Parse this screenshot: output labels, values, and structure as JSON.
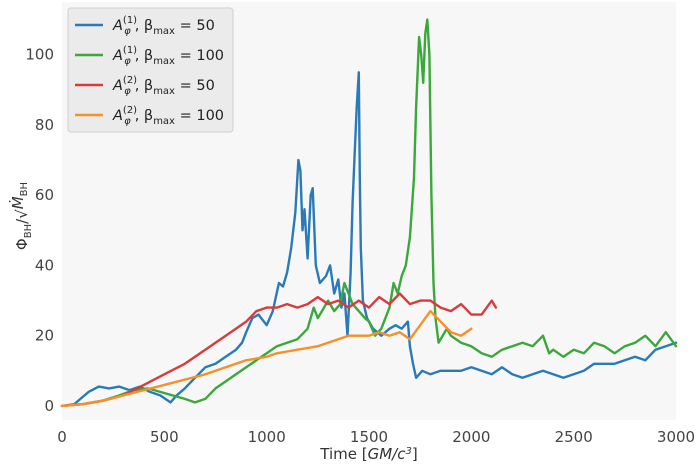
{
  "chart_data": {
    "type": "line",
    "title": "",
    "xlabel": "Time [GM/c³]",
    "ylabel": "Φ_BH / √Ṁ_BH",
    "xlim": [
      0,
      3000
    ],
    "ylim": [
      -4,
      115
    ],
    "xticks": [
      0,
      500,
      1000,
      1500,
      2000,
      2500,
      3000
    ],
    "yticks": [
      0,
      20,
      40,
      60,
      80,
      100
    ],
    "grid": false,
    "legend_position": "top-left",
    "series": [
      {
        "name": "A_φ^(1), β_max = 50",
        "legend": {
          "base": "A",
          "sub": "φ",
          "sup": "(1)",
          "rest": ", β",
          "rest_sub": "max",
          "eq": " = 50"
        },
        "color": "#2a7ab8",
        "points": [
          [
            0,
            0
          ],
          [
            60,
            0.5
          ],
          [
            90,
            2
          ],
          [
            130,
            4
          ],
          [
            180,
            5.5
          ],
          [
            230,
            5
          ],
          [
            280,
            5.5
          ],
          [
            330,
            4.5
          ],
          [
            380,
            5.5
          ],
          [
            430,
            4
          ],
          [
            480,
            3
          ],
          [
            530,
            1
          ],
          [
            560,
            3
          ],
          [
            600,
            5
          ],
          [
            650,
            8
          ],
          [
            700,
            11
          ],
          [
            750,
            12
          ],
          [
            800,
            14
          ],
          [
            850,
            16
          ],
          [
            880,
            18
          ],
          [
            900,
            21
          ],
          [
            930,
            25
          ],
          [
            960,
            26
          ],
          [
            1000,
            23
          ],
          [
            1030,
            27
          ],
          [
            1060,
            35
          ],
          [
            1080,
            34
          ],
          [
            1100,
            38
          ],
          [
            1120,
            45
          ],
          [
            1140,
            55
          ],
          [
            1155,
            70
          ],
          [
            1165,
            67
          ],
          [
            1175,
            50
          ],
          [
            1185,
            56
          ],
          [
            1200,
            42
          ],
          [
            1215,
            60
          ],
          [
            1225,
            62
          ],
          [
            1240,
            40
          ],
          [
            1260,
            35
          ],
          [
            1290,
            37
          ],
          [
            1310,
            40
          ],
          [
            1330,
            32
          ],
          [
            1350,
            36
          ],
          [
            1365,
            28
          ],
          [
            1380,
            32
          ],
          [
            1395,
            20
          ],
          [
            1410,
            38
          ],
          [
            1420,
            58
          ],
          [
            1430,
            72
          ],
          [
            1440,
            85
          ],
          [
            1450,
            95
          ],
          [
            1455,
            65
          ],
          [
            1460,
            45
          ],
          [
            1470,
            30
          ],
          [
            1490,
            25
          ],
          [
            1520,
            22
          ],
          [
            1560,
            20
          ],
          [
            1600,
            22
          ],
          [
            1630,
            23
          ],
          [
            1660,
            22
          ],
          [
            1690,
            24
          ],
          [
            1700,
            17
          ],
          [
            1715,
            12
          ],
          [
            1730,
            8
          ],
          [
            1760,
            10
          ],
          [
            1800,
            9
          ],
          [
            1850,
            10
          ],
          [
            1900,
            10
          ],
          [
            1950,
            10
          ],
          [
            2000,
            11
          ],
          [
            2050,
            10
          ],
          [
            2100,
            9
          ],
          [
            2150,
            11
          ],
          [
            2200,
            9
          ],
          [
            2250,
            8
          ],
          [
            2300,
            9
          ],
          [
            2350,
            10
          ],
          [
            2400,
            9
          ],
          [
            2450,
            8
          ],
          [
            2500,
            9
          ],
          [
            2550,
            10
          ],
          [
            2600,
            12
          ],
          [
            2650,
            12
          ],
          [
            2700,
            12
          ],
          [
            2750,
            13
          ],
          [
            2800,
            14
          ],
          [
            2850,
            13
          ],
          [
            2900,
            16
          ],
          [
            2950,
            17
          ],
          [
            3000,
            18
          ]
        ]
      },
      {
        "name": "A_φ^(1), β_max = 100",
        "legend": {
          "base": "A",
          "sub": "φ",
          "sup": "(1)",
          "rest": ", β",
          "rest_sub": "max",
          "eq": " = 100"
        },
        "color": "#3aa83a",
        "points": [
          [
            0,
            0
          ],
          [
            100,
            0.5
          ],
          [
            200,
            1.5
          ],
          [
            280,
            3
          ],
          [
            350,
            4.5
          ],
          [
            420,
            5
          ],
          [
            480,
            4
          ],
          [
            540,
            3
          ],
          [
            600,
            2
          ],
          [
            650,
            1
          ],
          [
            700,
            2
          ],
          [
            750,
            5
          ],
          [
            800,
            7
          ],
          [
            850,
            9
          ],
          [
            900,
            11
          ],
          [
            950,
            13
          ],
          [
            1000,
            15
          ],
          [
            1050,
            17
          ],
          [
            1100,
            18
          ],
          [
            1150,
            19
          ],
          [
            1200,
            22
          ],
          [
            1230,
            28
          ],
          [
            1250,
            25
          ],
          [
            1280,
            28
          ],
          [
            1300,
            30
          ],
          [
            1330,
            27
          ],
          [
            1360,
            29
          ],
          [
            1380,
            35
          ],
          [
            1400,
            32
          ],
          [
            1420,
            29
          ],
          [
            1450,
            27
          ],
          [
            1480,
            25
          ],
          [
            1500,
            24
          ],
          [
            1530,
            20
          ],
          [
            1560,
            22
          ],
          [
            1600,
            28
          ],
          [
            1620,
            35
          ],
          [
            1640,
            32
          ],
          [
            1660,
            37
          ],
          [
            1680,
            40
          ],
          [
            1700,
            48
          ],
          [
            1720,
            65
          ],
          [
            1730,
            85
          ],
          [
            1745,
            105
          ],
          [
            1755,
            100
          ],
          [
            1765,
            92
          ],
          [
            1775,
            106
          ],
          [
            1785,
            110
          ],
          [
            1795,
            100
          ],
          [
            1805,
            60
          ],
          [
            1815,
            35
          ],
          [
            1825,
            25
          ],
          [
            1840,
            18
          ],
          [
            1860,
            20
          ],
          [
            1880,
            22
          ],
          [
            1900,
            20
          ],
          [
            1950,
            18
          ],
          [
            2000,
            17
          ],
          [
            2050,
            15
          ],
          [
            2100,
            14
          ],
          [
            2150,
            16
          ],
          [
            2200,
            17
          ],
          [
            2250,
            18
          ],
          [
            2300,
            17
          ],
          [
            2350,
            20
          ],
          [
            2380,
            15
          ],
          [
            2400,
            16
          ],
          [
            2450,
            14
          ],
          [
            2500,
            16
          ],
          [
            2550,
            15
          ],
          [
            2600,
            18
          ],
          [
            2650,
            17
          ],
          [
            2700,
            15
          ],
          [
            2750,
            17
          ],
          [
            2800,
            18
          ],
          [
            2850,
            20
          ],
          [
            2900,
            17
          ],
          [
            2950,
            21
          ],
          [
            3000,
            17
          ]
        ]
      },
      {
        "name": "A_φ^(2), β_max = 50",
        "legend": {
          "base": "A",
          "sub": "φ",
          "sup": "(2)",
          "rest": ", β",
          "rest_sub": "max",
          "eq": " = 50"
        },
        "color": "#d63c3c",
        "points": [
          [
            0,
            0
          ],
          [
            100,
            0.5
          ],
          [
            200,
            1.5
          ],
          [
            300,
            3
          ],
          [
            400,
            6
          ],
          [
            500,
            9
          ],
          [
            600,
            12
          ],
          [
            700,
            16
          ],
          [
            800,
            20
          ],
          [
            900,
            24
          ],
          [
            950,
            27
          ],
          [
            1000,
            28
          ],
          [
            1050,
            28
          ],
          [
            1100,
            29
          ],
          [
            1150,
            28
          ],
          [
            1200,
            29
          ],
          [
            1250,
            31
          ],
          [
            1300,
            29
          ],
          [
            1350,
            30
          ],
          [
            1400,
            28
          ],
          [
            1450,
            30
          ],
          [
            1500,
            28
          ],
          [
            1550,
            31
          ],
          [
            1600,
            29
          ],
          [
            1650,
            32
          ],
          [
            1700,
            29
          ],
          [
            1750,
            30
          ],
          [
            1800,
            30
          ],
          [
            1850,
            28
          ],
          [
            1900,
            27
          ],
          [
            1950,
            29
          ],
          [
            2000,
            26
          ],
          [
            2050,
            26
          ],
          [
            2100,
            30
          ],
          [
            2120,
            28
          ]
        ]
      },
      {
        "name": "A_φ^(2), β_max = 100",
        "legend": {
          "base": "A",
          "sub": "φ",
          "sup": "(2)",
          "rest": ", β",
          "rest_sub": "max",
          "eq": " = 100"
        },
        "color": "#f5902a",
        "points": [
          [
            0,
            0
          ],
          [
            100,
            0.5
          ],
          [
            200,
            1.5
          ],
          [
            300,
            3
          ],
          [
            400,
            4.5
          ],
          [
            500,
            6
          ],
          [
            600,
            7.5
          ],
          [
            700,
            9
          ],
          [
            800,
            11
          ],
          [
            900,
            13
          ],
          [
            1000,
            14
          ],
          [
            1050,
            15
          ],
          [
            1100,
            15.5
          ],
          [
            1150,
            16
          ],
          [
            1200,
            16.5
          ],
          [
            1250,
            17
          ],
          [
            1300,
            18
          ],
          [
            1350,
            19
          ],
          [
            1400,
            20
          ],
          [
            1450,
            20
          ],
          [
            1500,
            20
          ],
          [
            1550,
            21
          ],
          [
            1600,
            20
          ],
          [
            1650,
            21
          ],
          [
            1700,
            19
          ],
          [
            1750,
            23
          ],
          [
            1800,
            27
          ],
          [
            1850,
            24
          ],
          [
            1900,
            21
          ],
          [
            1950,
            20
          ],
          [
            2000,
            22
          ]
        ]
      }
    ]
  }
}
